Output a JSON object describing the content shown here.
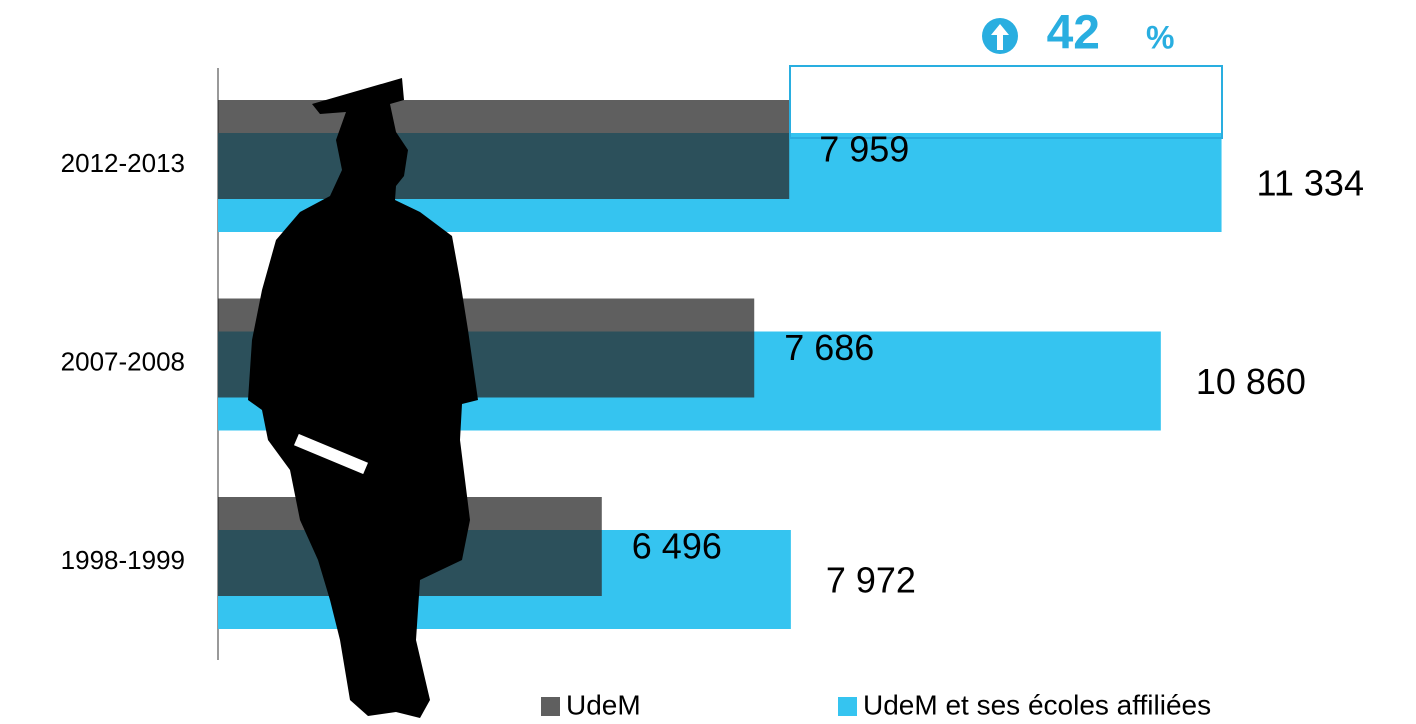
{
  "chart_data": {
    "type": "hbar",
    "categories": [
      "2012-2013",
      "2007-2008",
      "1998-1999"
    ],
    "series": [
      {
        "name": "UdeM",
        "color": "#2a2a2a",
        "values": [
          7959,
          7686,
          6496
        ],
        "value_labels": [
          "7 959",
          "7 686",
          "6 496"
        ]
      },
      {
        "name": "UdeM et ses écoles affiliées",
        "color": "#35c4f0",
        "values": [
          11334,
          10860,
          7972
        ],
        "value_labels": [
          "11 334",
          "10 860",
          "7 972"
        ]
      }
    ],
    "xlim": [
      3500,
      11400
    ],
    "annotation": "42",
    "annotation_unit": "%",
    "annotation_color": "#29aee0",
    "legend": "bottom"
  }
}
